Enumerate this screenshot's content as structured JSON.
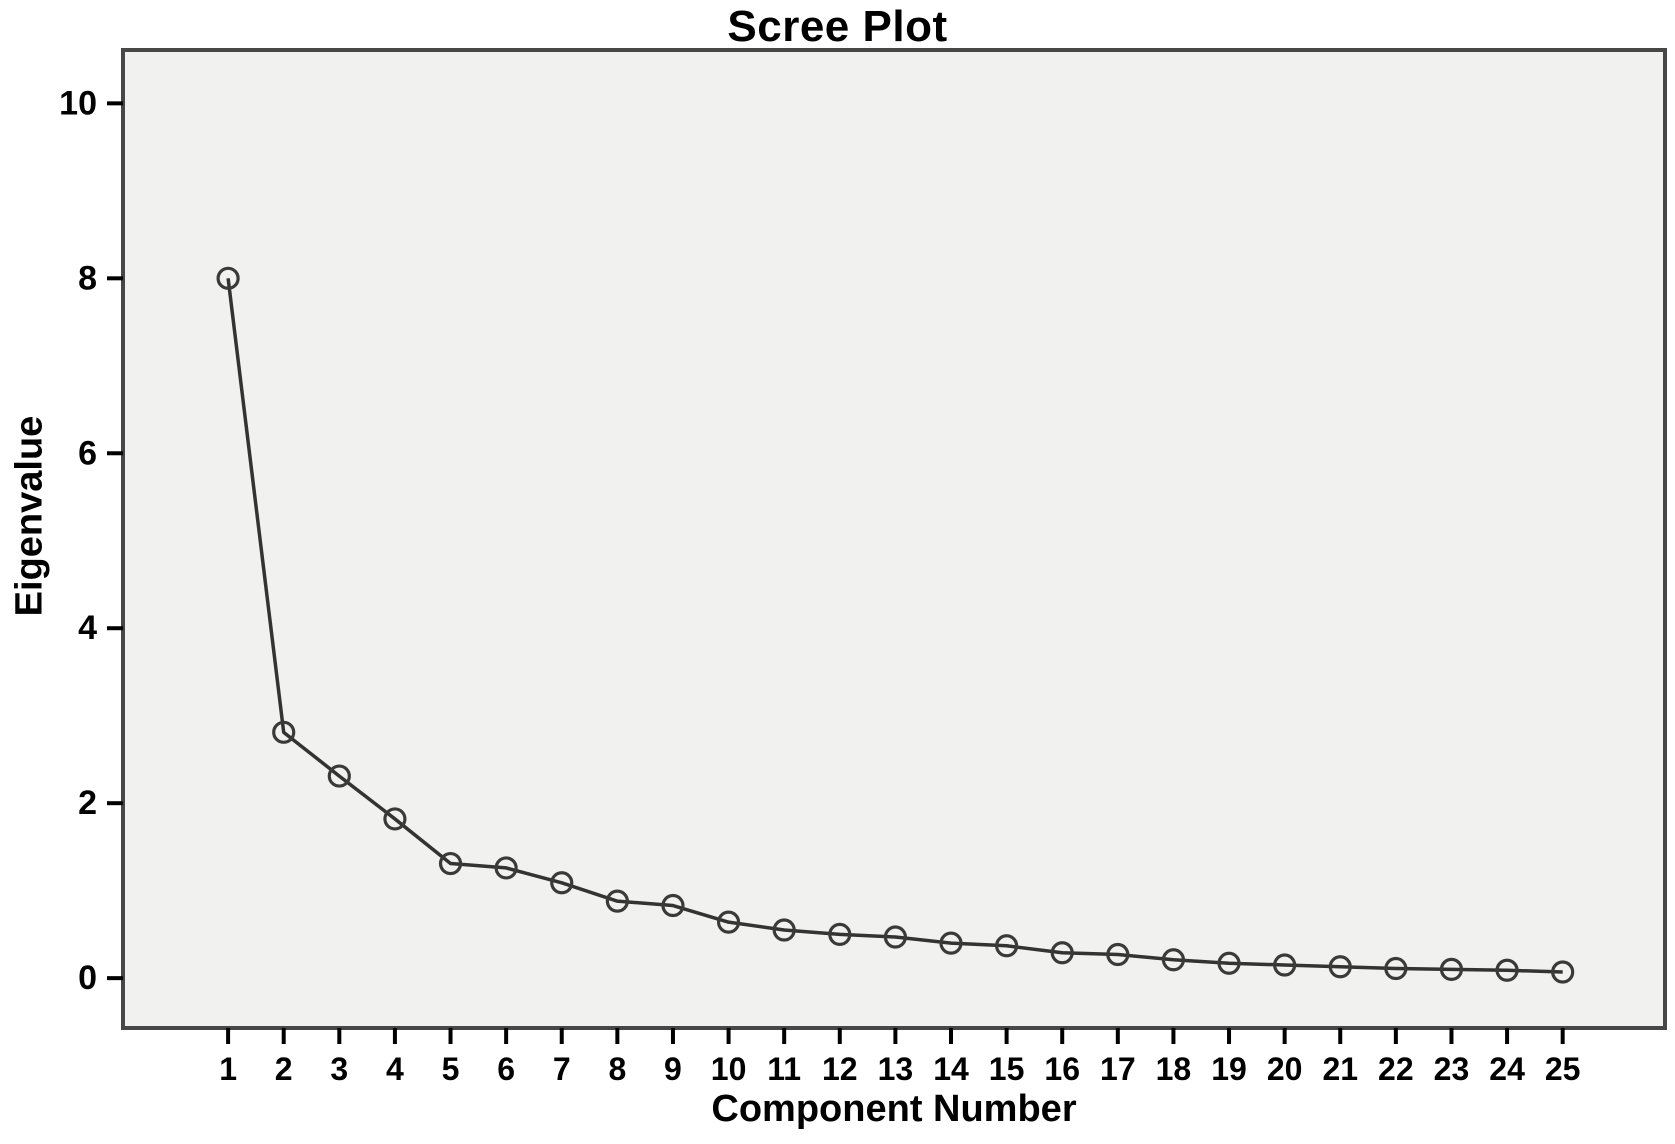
{
  "chart_data": {
    "type": "line",
    "title": "Scree Plot",
    "xlabel": "Component Number",
    "ylabel": "Eigenvalue",
    "x": [
      1,
      2,
      3,
      4,
      5,
      6,
      7,
      8,
      9,
      10,
      11,
      12,
      13,
      14,
      15,
      16,
      17,
      18,
      19,
      20,
      21,
      22,
      23,
      24,
      25
    ],
    "values": [
      8.0,
      2.81,
      2.31,
      1.82,
      1.31,
      1.26,
      1.09,
      0.88,
      0.83,
      0.64,
      0.55,
      0.5,
      0.47,
      0.4,
      0.37,
      0.29,
      0.27,
      0.21,
      0.17,
      0.15,
      0.13,
      0.11,
      0.1,
      0.09,
      0.07
    ],
    "y_ticks": [
      0,
      2,
      4,
      6,
      8,
      10
    ],
    "ylim": [
      -0.57,
      10.61
    ],
    "xlim": [
      -0.89,
      26.84
    ],
    "grid": false,
    "legend": "none",
    "marker": "open-circle",
    "colors": {
      "line": "#333333",
      "marker": "#3a3a3a",
      "plot_bg": "#f1f1ef",
      "frame": "#474747",
      "tick": "#000000",
      "text": "#000000",
      "page_bg": "#ffffff"
    }
  }
}
